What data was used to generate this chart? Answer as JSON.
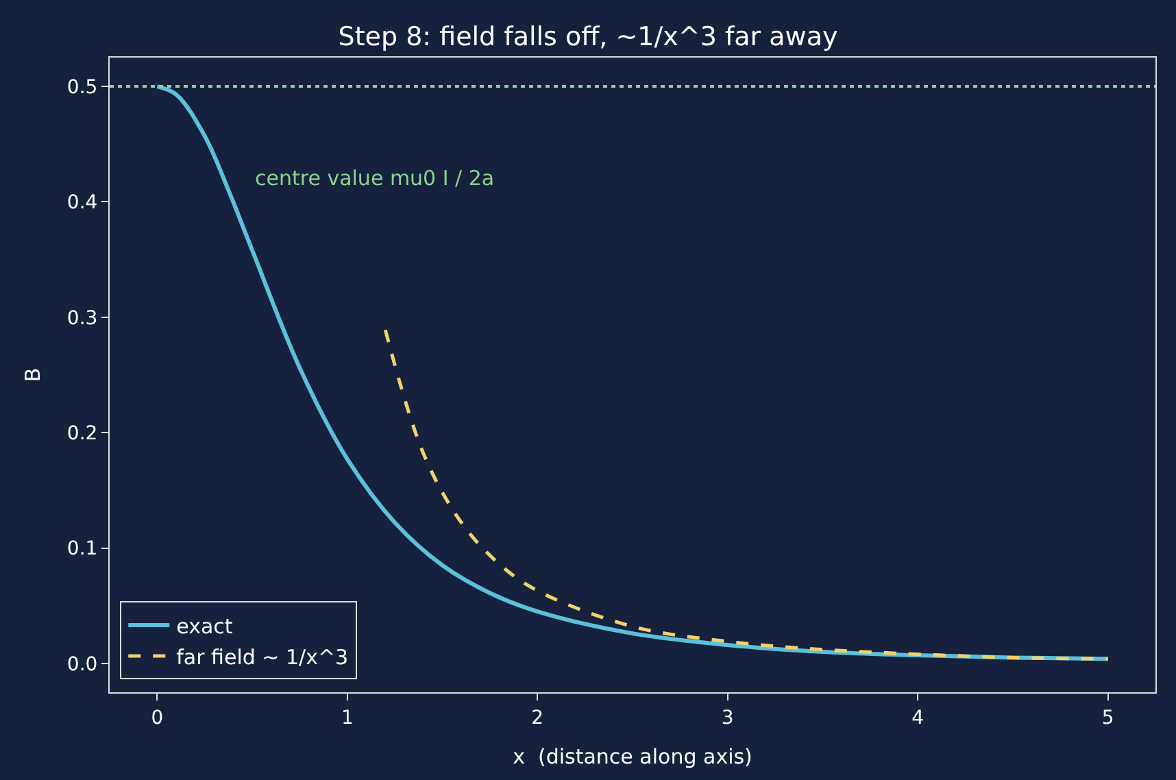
{
  "chart_data": {
    "type": "line",
    "title": "Step 8: field falls off, ~1/x^3 far away",
    "xlabel": "x  (distance along axis)",
    "ylabel": "B",
    "series": [
      {
        "name": "exact",
        "color": "#5bc0d8",
        "line_style": "solid",
        "x": [
          0,
          0.1,
          0.25,
          0.375,
          0.5,
          0.75,
          1,
          1.25,
          1.5,
          1.75,
          2,
          2.5,
          3,
          3.5,
          4,
          4.5,
          5
        ],
        "values": [
          0.5,
          0.493,
          0.457,
          0.41,
          0.358,
          0.256,
          0.177,
          0.122,
          0.085,
          0.061,
          0.045,
          0.026,
          0.016,
          0.01,
          0.007,
          0.005,
          0.004
        ]
      },
      {
        "name": "far field ~ 1/x^3",
        "color": "#f2d36b",
        "line_style": "dashed",
        "x": [
          1.2,
          1.4,
          1.6,
          1.8,
          2,
          2.5,
          3,
          3.5,
          4,
          4.5,
          5
        ],
        "values": [
          0.289,
          0.182,
          0.122,
          0.086,
          0.063,
          0.032,
          0.019,
          0.012,
          0.008,
          0.005,
          0.004
        ]
      }
    ],
    "ref_lines": [
      {
        "axis": "y",
        "value": 0.5,
        "color": "#8fd18f",
        "line_style": "dotted"
      }
    ],
    "annotations": [
      "centre value mu0 I / 2a"
    ],
    "xlim": [
      -0.25,
      5.25
    ],
    "xticks": [
      0,
      1,
      2,
      3,
      4,
      5
    ],
    "ylim": [
      -0.025,
      0.525
    ],
    "yticks": [
      {
        "value": 0,
        "label": "0.0"
      },
      0.1,
      0.2,
      0.3,
      0.4,
      0.5
    ],
    "grid": false,
    "legend": "bottom left",
    "marker": "none"
  }
}
